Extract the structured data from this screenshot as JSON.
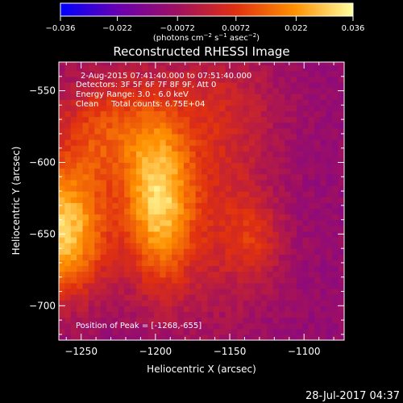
{
  "chart_data": {
    "type": "heatmap",
    "title": "Reconstructed RHESSI Image",
    "xlabel": "Heliocentric X (arcsec)",
    "ylabel": "Heliocentric Y (arcsec)",
    "xlim": [
      -1265,
      -1073
    ],
    "ylim": [
      -724,
      -530
    ],
    "x_ticks": [
      -1250,
      -1200,
      -1150,
      -1100
    ],
    "y_ticks": [
      -550,
      -600,
      -650,
      -700
    ],
    "x_tick_labels": [
      "−1250",
      "−1200",
      "−1150",
      "−1100"
    ],
    "y_tick_labels": [
      "−550",
      "−600",
      "−650",
      "−700"
    ],
    "colorbar": {
      "range": [
        -0.036,
        0.036
      ],
      "tick_labels": [
        "−0.036",
        "−0.022",
        "−0.0072",
        "0.0072",
        "0.022",
        "0.036"
      ],
      "colormap": [
        "#0000ff",
        "#6a00b0",
        "#a01060",
        "#e03010",
        "#ff9000",
        "#ffffa0"
      ]
    },
    "annotations": {
      "time_range": "2-Aug-2015 07:41:40.000 to 07:51:40.000",
      "detectors": "Detectors: 3F 5F 6F 7F 8F 9F, Att 0",
      "energy": "Energy Range: 3.0 - 6.0 keV",
      "clean": "Clean     Total counts: 6.75E+04",
      "peak": "Position of Peak = [-1268,-655]"
    },
    "footer": "28-Jul-2017 04:37",
    "blobs": [
      {
        "x": -1265,
        "y": -650,
        "sx": 22,
        "sy": 32,
        "amp": 0.04
      },
      {
        "x": -1200,
        "y": -630,
        "sx": 16,
        "sy": 40,
        "amp": 0.036
      },
      {
        "x": -1235,
        "y": -580,
        "sx": 26,
        "sy": 28,
        "amp": 0.02
      },
      {
        "x": -1160,
        "y": -640,
        "sx": 26,
        "sy": 50,
        "amp": 0.012
      },
      {
        "x": -1135,
        "y": -655,
        "sx": 14,
        "sy": 20,
        "amp": 0.01
      },
      {
        "x": -1160,
        "y": -560,
        "sx": 30,
        "sy": 30,
        "amp": 0.01
      }
    ],
    "background_level": -0.01
  }
}
